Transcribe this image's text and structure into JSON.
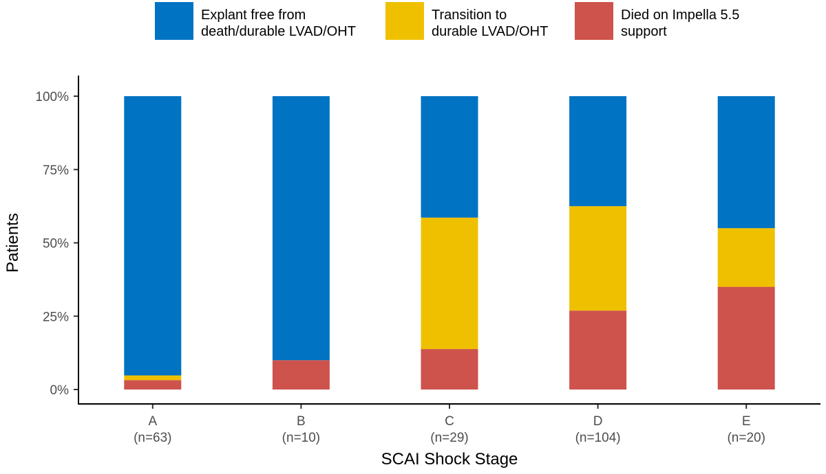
{
  "chart_data": {
    "type": "bar",
    "stacked": true,
    "xlabel": "SCAI Shock Stage",
    "ylabel": "Patients",
    "ylim": [
      0,
      100
    ],
    "yticks": [
      "0%",
      "25%",
      "50%",
      "75%",
      "100%"
    ],
    "categories": [
      "A",
      "B",
      "C",
      "D",
      "E"
    ],
    "category_counts": [
      "(n=63)",
      "(n=10)",
      "(n=29)",
      "(n=104)",
      "(n=20)"
    ],
    "legend_position": "top",
    "series": [
      {
        "name": "Died on Impella 5.5 support",
        "color": "#CD534C",
        "values": [
          3.2,
          10.0,
          13.8,
          26.9,
          35.0
        ]
      },
      {
        "name": "Transition to durable LVAD/OHT",
        "color": "#EFC000",
        "values": [
          1.6,
          0.0,
          44.8,
          35.6,
          20.0
        ]
      },
      {
        "name": "Explant free from death/durable LVAD/OHT",
        "color": "#0073C2",
        "values": [
          95.2,
          90.0,
          41.4,
          37.5,
          45.0
        ]
      }
    ],
    "legend": [
      {
        "lines": [
          "Explant free from",
          "death/durable LVAD/OHT"
        ],
        "color": "#0073C2"
      },
      {
        "lines": [
          "Transition to",
          "durable LVAD/OHT"
        ],
        "color": "#EFC000"
      },
      {
        "lines": [
          "Died on Impella 5.5",
          "support"
        ],
        "color": "#CD534C"
      }
    ]
  }
}
